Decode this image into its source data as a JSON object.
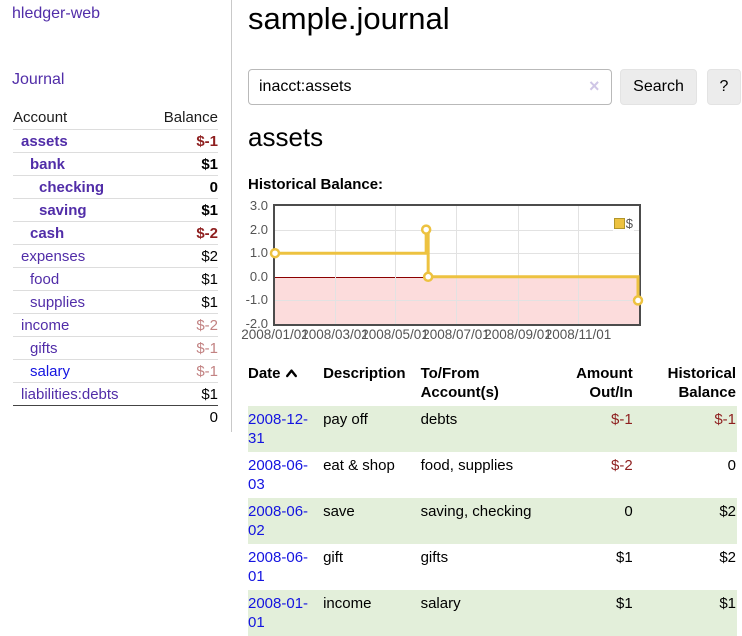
{
  "sidebar": {
    "brand": "hledger-web",
    "nav": {
      "journal": "Journal"
    },
    "accounts_table": {
      "headers": {
        "account": "Account",
        "balance": "Balance"
      },
      "rows": [
        {
          "name": "assets",
          "depth": 0,
          "balance": "$-1",
          "bold": true,
          "link_style": "visited"
        },
        {
          "name": "bank",
          "depth": 1,
          "balance": "$1",
          "bold": true,
          "link_style": "visited"
        },
        {
          "name": "checking",
          "depth": 2,
          "balance": "0",
          "bold": true,
          "link_style": "visited"
        },
        {
          "name": "saving",
          "depth": 2,
          "balance": "$1",
          "bold": true,
          "link_style": "visited"
        },
        {
          "name": "cash",
          "depth": 1,
          "balance": "$-2",
          "bold": true,
          "link_style": "visited"
        },
        {
          "name": "expenses",
          "depth": 0,
          "balance": "$2",
          "bold": false,
          "link_style": "visited"
        },
        {
          "name": "food",
          "depth": 1,
          "balance": "$1",
          "bold": false,
          "link_style": "visited"
        },
        {
          "name": "supplies",
          "depth": 1,
          "balance": "$1",
          "bold": false,
          "link_style": "visited"
        },
        {
          "name": "income",
          "depth": 0,
          "balance": "$-2",
          "bold": false,
          "link_style": "visited"
        },
        {
          "name": "gifts",
          "depth": 1,
          "balance": "$-1",
          "bold": false,
          "link_style": "visited"
        },
        {
          "name": "salary",
          "depth": 1,
          "balance": "$-1",
          "bold": false,
          "link_style": "unvisited"
        },
        {
          "name": "liabilities:debts",
          "depth": 0,
          "balance": "$1",
          "bold": false,
          "link_style": "visited"
        }
      ],
      "total": "0"
    }
  },
  "header": {
    "title": "sample.journal"
  },
  "search": {
    "value": "inacct:assets",
    "clear_label": "×",
    "button_label": "Search",
    "help_label": "?"
  },
  "account_page": {
    "title": "assets",
    "chart_label": "Historical Balance:"
  },
  "chart_data": {
    "type": "line",
    "step": true,
    "title": "Historical Balance",
    "series": [
      {
        "name": "$",
        "points": [
          [
            "2008-01-01",
            1
          ],
          [
            "2008-06-01",
            2
          ],
          [
            "2008-06-03",
            0
          ],
          [
            "2008-12-31",
            -1
          ]
        ]
      }
    ],
    "x_ticks": [
      "2008/01/01",
      "2008/03/01",
      "2008/05/01",
      "2008/07/01",
      "2008/09/01",
      "2008/11/01"
    ],
    "y_ticks": [
      3.0,
      2.0,
      1.0,
      0.0,
      -1.0,
      -2.0
    ],
    "xlim": [
      "2008-01-01",
      "2009-01-01"
    ],
    "ylim": [
      -2,
      3
    ],
    "legend": "$",
    "legend_position": "top-right",
    "grid": true,
    "negative_region_shaded": true,
    "colors": {
      "series": "#edc240",
      "negative_fill": "#fcdcdc",
      "zero_line": "#8b0000",
      "grid": "#e2e2e2",
      "border": "#4c4c4c"
    }
  },
  "register": {
    "columns": [
      {
        "label": "Date",
        "sorted": "ascending"
      },
      {
        "label": "Description"
      },
      {
        "label": "To/From Account(s)"
      },
      {
        "label": "Amount Out/In"
      },
      {
        "label": "Historical Balance"
      }
    ],
    "rows": [
      {
        "date": "2008-12-31",
        "description": "pay off",
        "accounts": "debts",
        "amount": "$-1",
        "balance": "$-1"
      },
      {
        "date": "2008-06-03",
        "description": "eat & shop",
        "accounts": "food, supplies",
        "amount": "$-2",
        "balance": "0"
      },
      {
        "date": "2008-06-02",
        "description": "save",
        "accounts": "saving, checking",
        "amount": "0",
        "balance": "$2"
      },
      {
        "date": "2008-06-01",
        "description": "gift",
        "accounts": "gifts",
        "amount": "$1",
        "balance": "$2"
      },
      {
        "date": "2008-01-01",
        "description": "income",
        "accounts": "salary",
        "amount": "$1",
        "balance": "$1"
      }
    ]
  },
  "colors": {
    "link_purple": "#512da8",
    "link_blue": "#1414e0",
    "negative_strong": "#8e1f1f",
    "negative_light": "#c28282",
    "row_green": "#e3efda",
    "chart_gold": "#edc240"
  }
}
